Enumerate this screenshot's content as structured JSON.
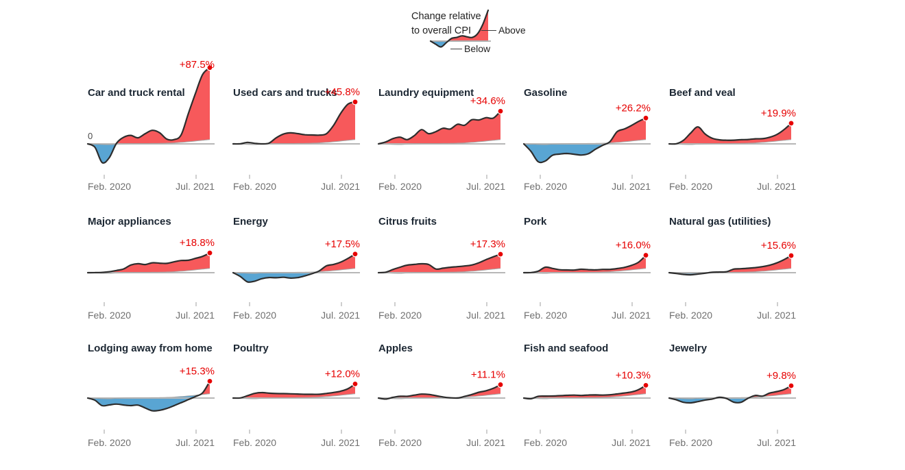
{
  "legend": {
    "caption_line1": "Change relative",
    "caption_line2": "to overall CPI",
    "above_label": "Above",
    "below_label": "Below",
    "series": [
      0,
      -3,
      -5.5,
      -1.5,
      2.5,
      3.5,
      5,
      4,
      3.5,
      7,
      16,
      29
    ]
  },
  "axis": {
    "start_label": "Feb. 2020",
    "end_label": "Jul. 2021",
    "zero_label": "0"
  },
  "colors": {
    "above_fill": "#f7595b",
    "below_fill": "#59a5d3",
    "line": "#2d2d2d",
    "baseline": "#b7b7b7",
    "reference_line": "#a6a6a6",
    "value_label": "#e60000",
    "dot": "#e60000",
    "title": "#1c2733",
    "axis_text": "#6f6f6f"
  },
  "chart_data": {
    "type": "area",
    "description": "Small multiples of price change relative to overall CPI, monthly from Feb. 2020 to Jul. 2021; red = above overall CPI, blue = below",
    "x_start": "Feb. 2020",
    "x_end": "Jul. 2021",
    "y_unit": "percent relative to overall CPI",
    "cpi_reference": [
      0,
      -0.2,
      -0.7,
      -0.8,
      -0.3,
      0.1,
      0.3,
      0.4,
      0.4,
      0.5,
      0.6,
      0.8,
      1.2,
      1.8,
      2.6,
      3.4,
      4.3,
      5.2
    ],
    "charts": [
      {
        "title": "Car and truck rental",
        "change_label": "+87.5%",
        "final_change_pct": 87.5,
        "values": [
          0,
          -4,
          -22,
          -16,
          1,
          8,
          10,
          7,
          12,
          16,
          13,
          5,
          4,
          9,
          34,
          58,
          80,
          87.5
        ]
      },
      {
        "title": "Used cars and trucks",
        "change_label": "+45.8%",
        "final_change_pct": 45.8,
        "values": [
          0,
          0.3,
          2.5,
          1.5,
          0.3,
          0.8,
          7,
          11.5,
          13,
          12,
          10.5,
          10,
          9.5,
          10.5,
          20,
          34,
          44,
          45.8
        ]
      },
      {
        "title": "Laundry equipment",
        "change_label": "+34.6%",
        "final_change_pct": 34.6,
        "values": [
          0,
          2.5,
          7,
          9,
          5.5,
          10,
          17,
          12,
          14.5,
          18.5,
          17.5,
          23,
          21.5,
          27.5,
          26.5,
          28.5,
          27,
          34.6
        ]
      },
      {
        "title": "Gasoline",
        "change_label": "+26.2%",
        "final_change_pct": 26.2,
        "values": [
          0,
          -9,
          -21,
          -20,
          -13.5,
          -12.5,
          -12,
          -13,
          -14,
          -12.5,
          -7,
          -2.5,
          1.5,
          13,
          15.5,
          19,
          23,
          26.2
        ]
      },
      {
        "title": "Beef and veal",
        "change_label": "+19.9%",
        "final_change_pct": 19.9,
        "values": [
          0,
          0.4,
          5,
          14,
          21,
          12,
          6.5,
          4.5,
          4,
          4,
          4.5,
          4.5,
          5,
          4.5,
          5.5,
          8,
          13,
          19.9
        ]
      },
      {
        "title": "Major appliances",
        "change_label": "+18.8%",
        "final_change_pct": 18.8,
        "values": [
          0,
          0.3,
          1,
          2,
          3,
          4.5,
          9,
          10.5,
          9.5,
          11.5,
          11,
          10.5,
          12,
          13,
          12.5,
          14,
          15.5,
          18.8
        ]
      },
      {
        "title": "Energy",
        "change_label": "+17.5%",
        "final_change_pct": 17.5,
        "values": [
          0,
          -4.5,
          -10.5,
          -9.5,
          -7,
          -6,
          -6.5,
          -6,
          -7,
          -6.5,
          -4.5,
          -2,
          1,
          6.5,
          7.5,
          9.5,
          13,
          17.5
        ]
      },
      {
        "title": "Citrus fruits",
        "change_label": "+17.3%",
        "final_change_pct": 17.3,
        "values": [
          0,
          0.8,
          4.5,
          7.5,
          9.5,
          10,
          10.5,
          9.5,
          4,
          5,
          6,
          6.5,
          7,
          7.5,
          9.5,
          12.5,
          15,
          17.3
        ]
      },
      {
        "title": "Pork",
        "change_label": "+16.0%",
        "final_change_pct": 16.0,
        "values": [
          0,
          0.4,
          2.5,
          7.5,
          5.5,
          3.5,
          3,
          2.8,
          3.8,
          3.2,
          2.8,
          3.2,
          2.8,
          3.2,
          3.8,
          5.5,
          8.5,
          16
        ]
      },
      {
        "title": "Natural gas (utilities)",
        "change_label": "+15.6%",
        "final_change_pct": 15.6,
        "values": [
          0,
          -0.8,
          -1.4,
          -1.8,
          -1.4,
          -0.8,
          0.2,
          0.4,
          0.8,
          3.8,
          4.2,
          4.6,
          5,
          5.5,
          6.5,
          8.5,
          11.5,
          15.6
        ]
      },
      {
        "title": "Lodging away from home",
        "change_label": "+15.3%",
        "final_change_pct": 15.3,
        "values": [
          0,
          -2.5,
          -8.5,
          -7.5,
          -7,
          -8.5,
          -9.5,
          -9,
          -12.5,
          -16,
          -15.5,
          -13.5,
          -10.5,
          -7.5,
          -4.5,
          -1.5,
          2,
          15.3
        ]
      },
      {
        "title": "Poultry",
        "change_label": "+12.0%",
        "final_change_pct": 12.0,
        "values": [
          0,
          0.4,
          3.5,
          6.5,
          7,
          5.8,
          5.2,
          5,
          4.8,
          4.4,
          4,
          3.8,
          3.4,
          3.8,
          4.2,
          5,
          7,
          12
        ]
      },
      {
        "title": "Apples",
        "change_label": "+11.1%",
        "final_change_pct": 11.1,
        "values": [
          0,
          -1,
          1.5,
          3,
          2.5,
          3.5,
          4.5,
          4,
          2.5,
          0.8,
          -0.3,
          -0.8,
          0.8,
          2.5,
          4.5,
          5.5,
          7.5,
          11.1
        ]
      },
      {
        "title": "Fish and seafood",
        "change_label": "+10.3%",
        "final_change_pct": 10.3,
        "values": [
          0,
          -0.6,
          2.8,
          3.2,
          2.8,
          2.8,
          3,
          3.2,
          2.8,
          3.2,
          3.2,
          2.8,
          2.8,
          3.2,
          3.6,
          4,
          6,
          10.3
        ]
      },
      {
        "title": "Jewelry",
        "change_label": "+9.8%",
        "final_change_pct": 9.8,
        "values": [
          0,
          -2,
          -4.5,
          -5,
          -4,
          -2.5,
          -1.5,
          0.5,
          -1,
          -5.5,
          -5.8,
          -1,
          2,
          0.5,
          3.5,
          4.5,
          6,
          9.8
        ]
      }
    ]
  }
}
